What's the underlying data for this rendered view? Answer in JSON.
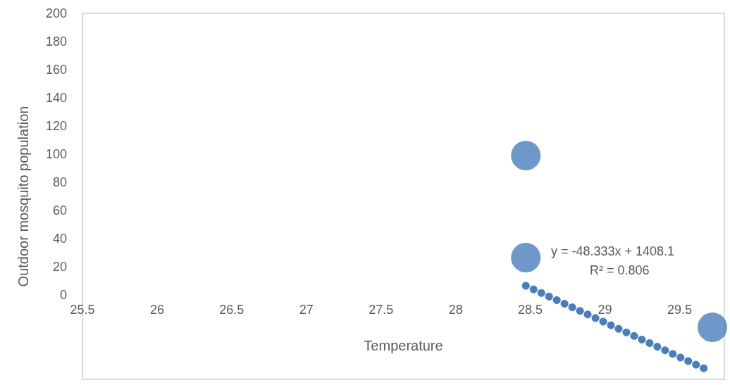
{
  "chart_data": {
    "type": "scatter",
    "xlabel": "Temperature",
    "ylabel": "Outdoor mosquito population",
    "xlim": [
      25.5,
      29.8
    ],
    "xticks": [
      25.5,
      26,
      26.5,
      27,
      27.5,
      28,
      28.5,
      29,
      29.5
    ],
    "ylim": [
      -60,
      200
    ],
    "yticks": [
      0,
      20,
      40,
      60,
      80,
      100,
      120,
      140,
      160,
      180,
      200
    ],
    "grid": false,
    "marker": "circle",
    "series": [
      {
        "color": "#4a7ebb",
        "x": [
          28.47,
          28.47,
          29.72
        ],
        "values": [
          99,
          26.5,
          -23
        ]
      },
      {
        "type": "line",
        "color": "#4a7ebb",
        "line_style": "dotted",
        "marker": "none",
        "x": [
          28.47,
          29.68
        ],
        "values": [
          6.5,
          -53
        ]
      }
    ],
    "annotations": [
      "y = -48.333x + 1408.1",
      "R² = 0.806"
    ]
  }
}
